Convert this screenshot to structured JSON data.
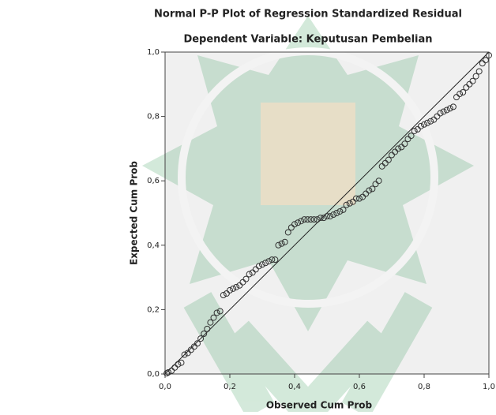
{
  "chart_data": {
    "type": "scatter",
    "title": "Normal P-P Plot of Regression Standardized Residual",
    "subtitle": "Dependent Variable: Keputusan Pembelian",
    "x_label": "Observed Cum Prob",
    "y_label": "Expected Cum Prob",
    "xlim": [
      0,
      1
    ],
    "ylim": [
      0,
      1
    ],
    "xticks": [
      {
        "value": 0,
        "label": "0,0"
      },
      {
        "value": 0.2,
        "label": "0,2"
      },
      {
        "value": 0.4,
        "label": "0,4"
      },
      {
        "value": 0.6,
        "label": "0,6"
      },
      {
        "value": 0.8,
        "label": "0,8"
      },
      {
        "value": 1,
        "label": "1,0"
      }
    ],
    "yticks": [
      {
        "value": 0,
        "label": "0,0"
      },
      {
        "value": 0.2,
        "label": "0,2"
      },
      {
        "value": 0.4,
        "label": "0,4"
      },
      {
        "value": 0.6,
        "label": "0,6"
      },
      {
        "value": 0.8,
        "label": "0,8"
      },
      {
        "value": 1,
        "label": "1,0"
      }
    ],
    "color": "#333333",
    "x": [
      0.005,
      0.01,
      0.02,
      0.03,
      0.04,
      0.05,
      0.06,
      0.07,
      0.08,
      0.09,
      0.1,
      0.11,
      0.12,
      0.13,
      0.14,
      0.15,
      0.16,
      0.17,
      0.18,
      0.19,
      0.2,
      0.21,
      0.22,
      0.23,
      0.24,
      0.25,
      0.26,
      0.27,
      0.28,
      0.29,
      0.3,
      0.31,
      0.32,
      0.33,
      0.34,
      0.35,
      0.36,
      0.37,
      0.38,
      0.39,
      0.4,
      0.41,
      0.42,
      0.43,
      0.44,
      0.45,
      0.46,
      0.47,
      0.48,
      0.49,
      0.5,
      0.51,
      0.52,
      0.53,
      0.54,
      0.55,
      0.56,
      0.57,
      0.58,
      0.59,
      0.6,
      0.61,
      0.62,
      0.63,
      0.64,
      0.65,
      0.66,
      0.67,
      0.68,
      0.69,
      0.7,
      0.71,
      0.72,
      0.73,
      0.74,
      0.75,
      0.76,
      0.77,
      0.78,
      0.79,
      0.8,
      0.81,
      0.82,
      0.83,
      0.84,
      0.85,
      0.86,
      0.87,
      0.88,
      0.89,
      0.9,
      0.91,
      0.92,
      0.93,
      0.94,
      0.95,
      0.96,
      0.97,
      0.98,
      0.99,
      1.0
    ],
    "y": [
      0.002,
      0.005,
      0.01,
      0.02,
      0.03,
      0.035,
      0.06,
      0.065,
      0.075,
      0.085,
      0.095,
      0.11,
      0.125,
      0.14,
      0.16,
      0.175,
      0.19,
      0.195,
      0.245,
      0.25,
      0.26,
      0.265,
      0.27,
      0.275,
      0.285,
      0.295,
      0.31,
      0.315,
      0.325,
      0.335,
      0.34,
      0.345,
      0.35,
      0.355,
      0.355,
      0.4,
      0.405,
      0.41,
      0.44,
      0.455,
      0.465,
      0.47,
      0.475,
      0.48,
      0.48,
      0.48,
      0.48,
      0.48,
      0.485,
      0.485,
      0.49,
      0.49,
      0.495,
      0.5,
      0.505,
      0.51,
      0.525,
      0.53,
      0.535,
      0.545,
      0.545,
      0.55,
      0.56,
      0.57,
      0.575,
      0.59,
      0.6,
      0.645,
      0.655,
      0.665,
      0.68,
      0.69,
      0.7,
      0.705,
      0.715,
      0.73,
      0.74,
      0.755,
      0.76,
      0.77,
      0.775,
      0.78,
      0.785,
      0.79,
      0.8,
      0.81,
      0.815,
      0.82,
      0.825,
      0.83,
      0.86,
      0.87,
      0.875,
      0.89,
      0.9,
      0.91,
      0.925,
      0.94,
      0.965,
      0.975,
      0.99
    ]
  }
}
